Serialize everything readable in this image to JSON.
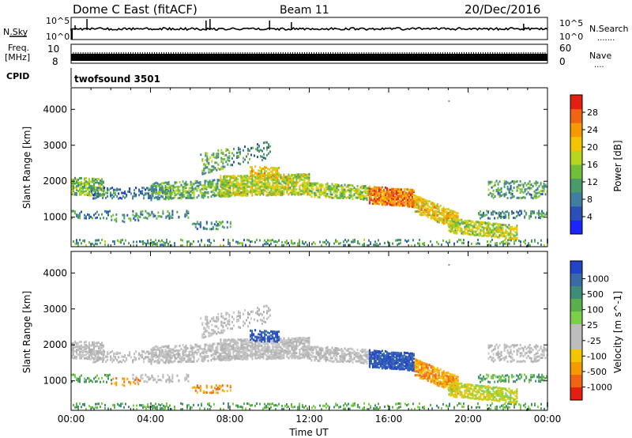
{
  "header": {
    "station": "Dome C East (fitACF)",
    "beam": "Beam 11",
    "date": "20/Dec/2016"
  },
  "left_labels": {
    "nsky": "N.Sky",
    "freq": "Freq.",
    "freq_unit": "[MHz]",
    "cpid": "CPID"
  },
  "right_labels": {
    "nsearch": "N.Search",
    "nave": "Nave"
  },
  "noise_panel": {
    "left_ticks": [
      "10^5",
      "10^0"
    ],
    "right_ticks": [
      "10^5",
      "10^0"
    ]
  },
  "freq_panel": {
    "left_ticks": [
      "10",
      "8"
    ],
    "right_ticks": [
      "60",
      "0"
    ]
  },
  "cpid_panel": {
    "program": "twofsound 3501"
  },
  "chart_data": [
    {
      "type": "heatmap",
      "name": "power",
      "ylabel": "Slant Range [km]",
      "ylim": [
        180,
        4600
      ],
      "yticks": [
        "1000",
        "2000",
        "3000",
        "4000"
      ],
      "xlim": [
        0,
        24
      ],
      "colorbar": {
        "label": "Power [dB]",
        "range": [
          0,
          32
        ],
        "ticks": [
          "4",
          "8",
          "12",
          "16",
          "20",
          "24",
          "28"
        ],
        "colors": [
          "#1a24ff",
          "#2a4fb8",
          "#3f7ea0",
          "#4a9a6a",
          "#6fbf3a",
          "#b8d61e",
          "#f5c400",
          "#f59a00",
          "#f06414",
          "#e51e12"
        ]
      }
    },
    {
      "type": "heatmap",
      "name": "velocity",
      "ylabel": "Slant Range [km]",
      "ylim": [
        180,
        4600
      ],
      "yticks": [
        "1000",
        "2000",
        "3000",
        "4000"
      ],
      "xlim": [
        0,
        24
      ],
      "xticks": [
        "00:00",
        "04:00",
        "08:00",
        "12:00",
        "16:00",
        "20:00",
        "00:00"
      ],
      "xlabel": "Time UT",
      "colorbar": {
        "label": "Velocity [m s^-1]",
        "ticks": [
          "1000",
          "500",
          "100",
          "25",
          "-25",
          "-100",
          "-500",
          "-1000"
        ],
        "colors": [
          "#2244c8",
          "#3a6aa8",
          "#3f8c78",
          "#5aae4c",
          "#7cd048",
          "#bdbdbd",
          "#bdbdbd",
          "#f5c400",
          "#f59a00",
          "#f06414",
          "#e51e12"
        ]
      }
    }
  ]
}
